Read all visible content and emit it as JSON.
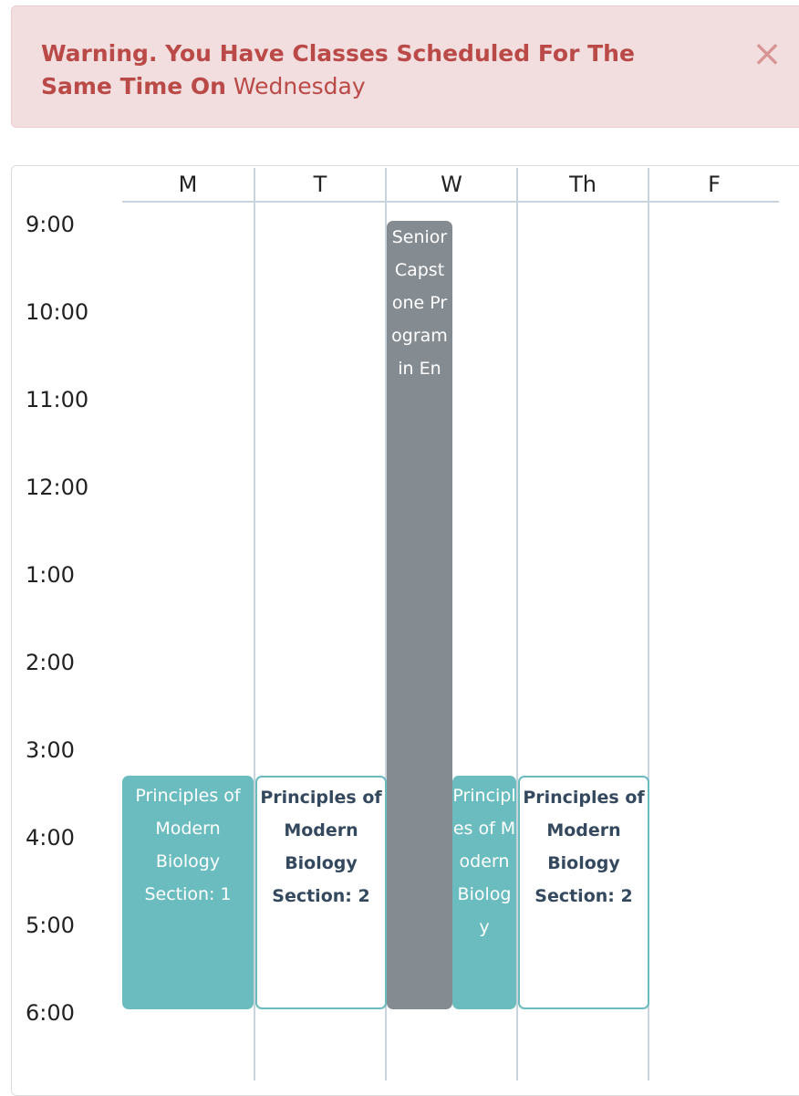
{
  "alert": {
    "strong_text": "Warning. You Have Classes Scheduled For The Same Time On",
    "day": "Wednesday",
    "close_glyph": "×"
  },
  "calendar": {
    "days": [
      "M",
      "T",
      "W",
      "Th",
      "F"
    ],
    "times": [
      "9:00",
      "10:00",
      "11:00",
      "12:00",
      "1:00",
      "2:00",
      "3:00",
      "4:00",
      "5:00",
      "6:00"
    ],
    "events": {
      "mon_bio": "Principles of Modern Biology Section: 1",
      "tue_bio": "Principles of Modern Biology Section: 2",
      "wed_capstone": "Senior Capstone Program in En",
      "wed_bio": "Principles of Modern Biology",
      "thu_bio": "Principles of Modern Biology Section: 2"
    }
  },
  "colors": {
    "alert_bg": "#f2dede",
    "alert_text": "#b94a48",
    "teal": "#6bbcbf",
    "gray": "#858c91",
    "navy_text": "#34495e"
  }
}
